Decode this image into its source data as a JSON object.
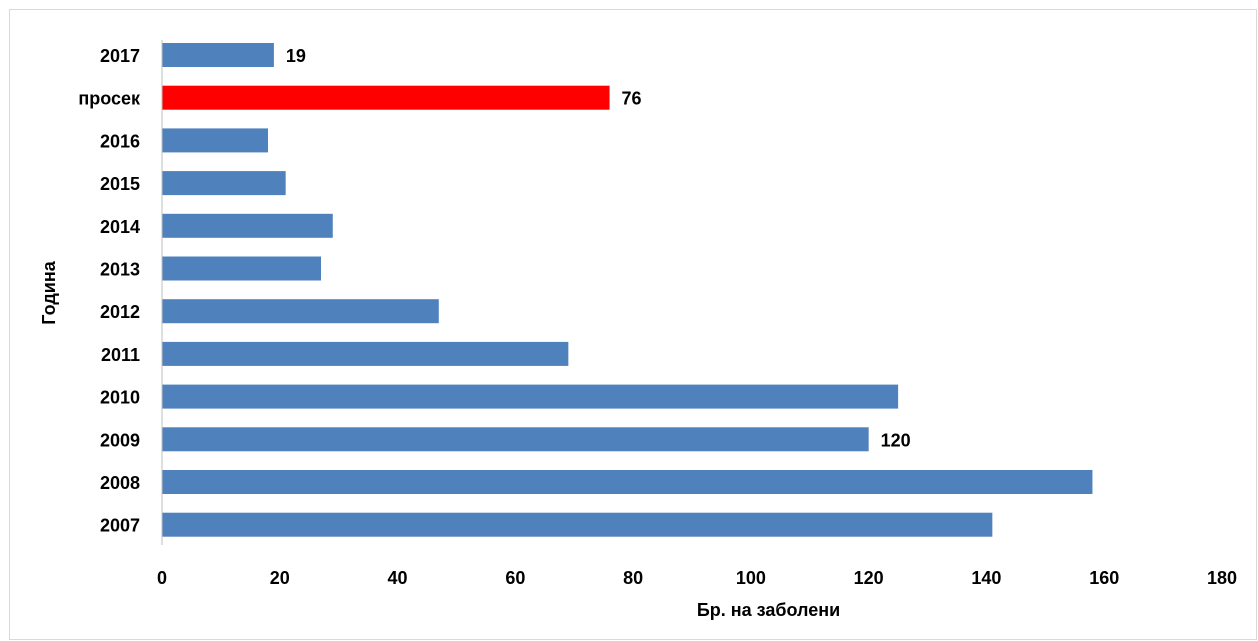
{
  "chart_data": {
    "type": "bar",
    "orientation": "horizontal",
    "title": "",
    "xlabel": "Бр. на заболени",
    "ylabel": "Година",
    "xlim": [
      0,
      180
    ],
    "x_ticks": [
      "0",
      "20",
      "40",
      "60",
      "80",
      "100",
      "120",
      "140",
      "160",
      "180"
    ],
    "grid": false,
    "categories": [
      "2017",
      "просек",
      "2016",
      "2015",
      "2014",
      "2013",
      "2012",
      "2011",
      "2010",
      "2009",
      "2008",
      "2007"
    ],
    "values": [
      19,
      76,
      18,
      21,
      29,
      27,
      47,
      69,
      125,
      120,
      158,
      141
    ],
    "data_labels": {
      "2017": "19",
      "просек": "76",
      "2009": "120"
    },
    "colors": {
      "default": "#4f81bd",
      "highlight": "#ff0000"
    },
    "highlight_category": "просек"
  }
}
